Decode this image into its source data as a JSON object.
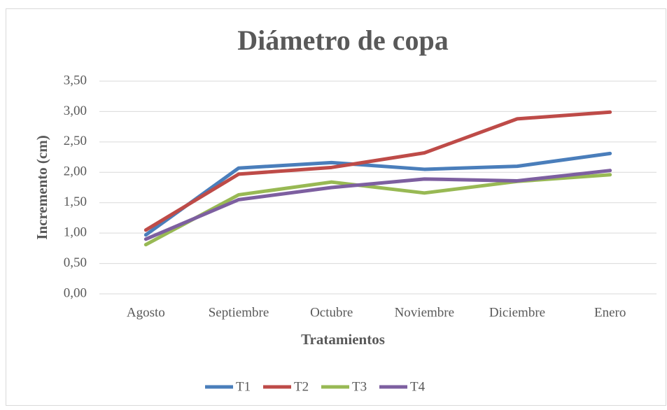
{
  "chart_data": {
    "type": "line",
    "title": "Diámetro de copa",
    "xlabel": "Tratamientos",
    "ylabel": "Incremento (cm)",
    "categories": [
      "Agosto",
      "Septiembre",
      "Octubre",
      "Noviembre",
      "Diciembre",
      "Enero"
    ],
    "series": [
      {
        "name": "T1",
        "color": "#4a7ebb",
        "values": [
          0.97,
          2.07,
          2.16,
          2.05,
          2.1,
          2.31
        ]
      },
      {
        "name": "T2",
        "color": "#be4b48",
        "values": [
          1.05,
          1.97,
          2.08,
          2.32,
          2.88,
          2.99
        ]
      },
      {
        "name": "T3",
        "color": "#98b954",
        "values": [
          0.81,
          1.63,
          1.84,
          1.66,
          1.85,
          1.96
        ]
      },
      {
        "name": "T4",
        "color": "#7d5fa0",
        "values": [
          0.9,
          1.55,
          1.75,
          1.89,
          1.86,
          2.03
        ]
      }
    ],
    "ylim": [
      0,
      3.5
    ],
    "yticks": [
      {
        "value": 0,
        "label": "0,00"
      },
      {
        "value": 0.5,
        "label": "0,50"
      },
      {
        "value": 1,
        "label": "1,00"
      },
      {
        "value": 1.5,
        "label": "1,50"
      },
      {
        "value": 2,
        "label": "2,00"
      },
      {
        "value": 2.5,
        "label": "2,50"
      },
      {
        "value": 3,
        "label": "3,00"
      },
      {
        "value": 3.5,
        "label": "3,50"
      }
    ],
    "grid": true,
    "legend": "bottom"
  }
}
